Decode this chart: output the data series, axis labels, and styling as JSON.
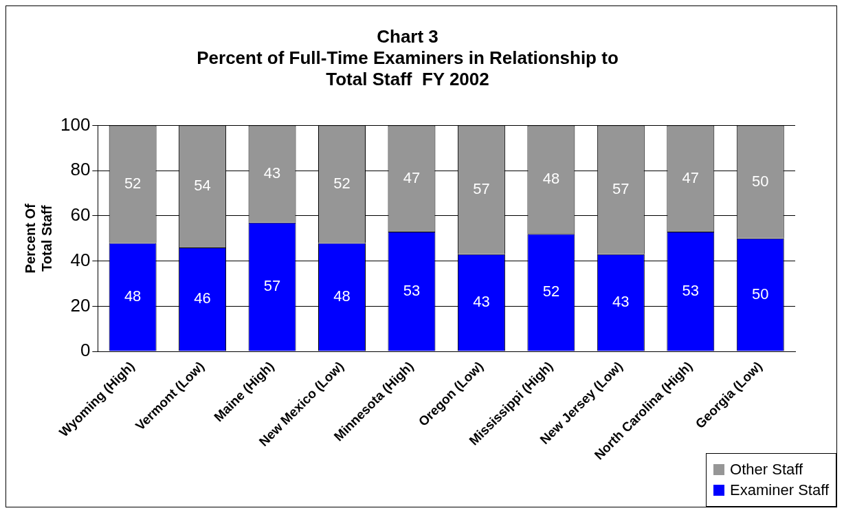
{
  "chart_data": {
    "type": "bar",
    "title": "Chart 3\nPercent of Full-Time Examiners in Relationship to\nTotal Staff  FY 2002",
    "ylabel": "Percent Of\nTotal Staff",
    "categories": [
      "Wyoming (High)",
      "Vermont (Low)",
      "Maine (High)",
      "New Mexico (Low)",
      "Minnesota (High)",
      "Oregon (Low)",
      "Mississippi (High)",
      "New Jersey (Low)",
      "North Carolina (High)",
      "Georgia (Low)"
    ],
    "series": [
      {
        "name": "Examiner Staff",
        "color": "#0000ff",
        "values": [
          48,
          46,
          57,
          48,
          53,
          43,
          52,
          43,
          53,
          50
        ]
      },
      {
        "name": "Other Staff",
        "color": "#969696",
        "values": [
          52,
          54,
          43,
          52,
          47,
          57,
          48,
          57,
          47,
          50
        ]
      }
    ],
    "stacked": true,
    "ylim": [
      0,
      100
    ],
    "yticks": [
      0,
      20,
      40,
      60,
      80,
      100
    ],
    "grid": "y",
    "legend": "bottom right",
    "data_labels": true
  }
}
